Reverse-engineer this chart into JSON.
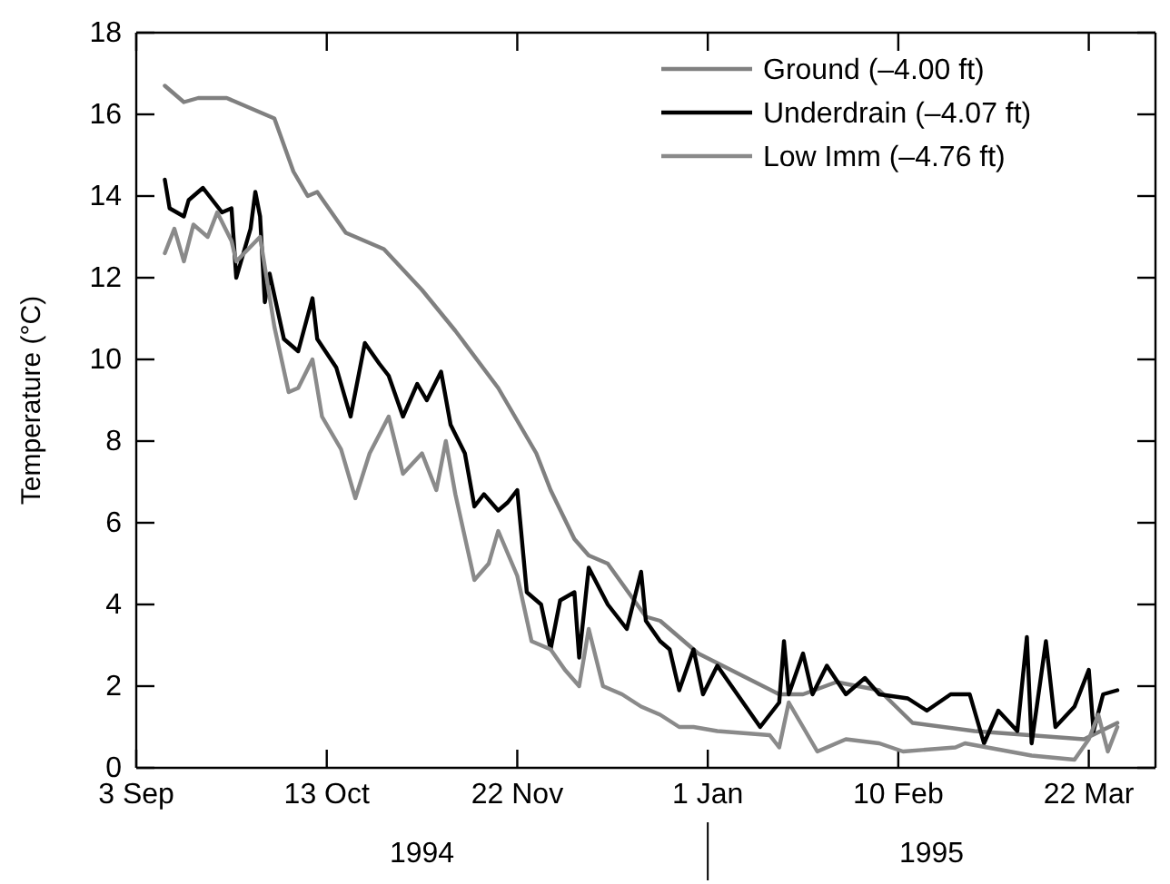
{
  "chart_data": {
    "type": "line",
    "ylabel": "Temperature (°C)",
    "xlim": [
      "1994-09-03",
      "1995-04-05"
    ],
    "xticks": [
      {
        "value": "1994-09-03",
        "label": "3 Sep"
      },
      {
        "value": "1994-10-13",
        "label": "13 Oct"
      },
      {
        "value": "1994-11-22",
        "label": "22 Nov"
      },
      {
        "value": "1995-01-01",
        "label": "1 Jan"
      },
      {
        "value": "1995-02-10",
        "label": "10 Feb"
      },
      {
        "value": "1995-03-22",
        "label": "22 Mar"
      }
    ],
    "ylim": [
      0,
      18
    ],
    "yticks": [
      0,
      2,
      4,
      6,
      8,
      10,
      12,
      14,
      16,
      18
    ],
    "legend": "top right",
    "grid": false,
    "annotations": [
      "1994",
      "1995"
    ],
    "series": [
      {
        "name": "Ground (–4.00 ft)",
        "color": "#808080",
        "x": [
          "1994-09-09",
          "1994-09-13",
          "1994-09-16",
          "1994-09-22",
          "1994-09-28",
          "1994-10-02",
          "1994-10-06",
          "1994-10-09",
          "1994-10-11",
          "1994-10-17",
          "1994-10-25",
          "1994-11-02",
          "1994-11-09",
          "1994-11-18",
          "1994-11-26",
          "1994-11-29",
          "1994-12-04",
          "1994-12-07",
          "1994-12-11",
          "1994-12-19",
          "1994-12-22",
          "1994-12-30",
          "1995-01-16",
          "1995-01-21",
          "1995-01-28",
          "1995-02-06",
          "1995-02-13",
          "1995-02-26",
          "1995-03-21",
          "1995-03-28"
        ],
        "values": [
          16.7,
          16.3,
          16.4,
          16.4,
          16.1,
          15.9,
          14.6,
          14.0,
          14.1,
          13.1,
          12.7,
          11.7,
          10.7,
          9.3,
          7.7,
          6.8,
          5.6,
          5.2,
          5.0,
          3.7,
          3.6,
          2.8,
          1.8,
          1.8,
          2.1,
          1.9,
          1.1,
          0.9,
          0.7,
          1.1
        ]
      },
      {
        "name": "Underdrain (–4.07 ft)",
        "color": "#000000",
        "x": [
          "1994-09-09",
          "1994-09-10",
          "1994-09-13",
          "1994-09-14",
          "1994-09-17",
          "1994-09-19",
          "1994-09-21",
          "1994-09-23",
          "1994-09-24",
          "1994-09-27",
          "1994-09-28",
          "1994-09-29",
          "1994-09-30",
          "1994-10-01",
          "1994-10-04",
          "1994-10-07",
          "1994-10-10",
          "1994-10-11",
          "1994-10-15",
          "1994-10-18",
          "1994-10-21",
          "1994-10-24",
          "1994-10-26",
          "1994-10-29",
          "1994-11-01",
          "1994-11-03",
          "1994-11-06",
          "1994-11-08",
          "1994-11-11",
          "1994-11-13",
          "1994-11-15",
          "1994-11-18",
          "1994-11-20",
          "1994-11-22",
          "1994-11-24",
          "1994-11-27",
          "1994-11-29",
          "1994-12-01",
          "1994-12-04",
          "1994-12-05",
          "1994-12-07",
          "1994-12-11",
          "1994-12-15",
          "1994-12-18",
          "1994-12-19",
          "1994-12-22",
          "1994-12-24",
          "1994-12-26",
          "1994-12-29",
          "1994-12-31",
          "1995-01-03",
          "1995-01-06",
          "1995-01-12",
          "1995-01-16",
          "1995-01-17",
          "1995-01-18",
          "1995-01-21",
          "1995-01-23",
          "1995-01-26",
          "1995-01-30",
          "1995-02-03",
          "1995-02-06",
          "1995-02-12",
          "1995-02-16",
          "1995-02-21",
          "1995-02-25",
          "1995-02-28",
          "1995-03-03",
          "1995-03-07",
          "1995-03-09",
          "1995-03-10",
          "1995-03-13",
          "1995-03-15",
          "1995-03-19",
          "1995-03-22",
          "1995-03-23",
          "1995-03-25",
          "1995-03-28"
        ],
        "values": [
          14.4,
          13.7,
          13.5,
          13.9,
          14.2,
          13.9,
          13.6,
          13.7,
          12.0,
          13.2,
          14.1,
          13.5,
          11.4,
          12.1,
          10.5,
          10.2,
          11.5,
          10.5,
          9.8,
          8.6,
          10.4,
          9.9,
          9.6,
          8.6,
          9.4,
          9.0,
          9.7,
          8.4,
          7.7,
          6.4,
          6.7,
          6.3,
          6.5,
          6.8,
          4.3,
          4.0,
          2.9,
          4.1,
          4.3,
          2.7,
          4.9,
          4.0,
          3.4,
          4.8,
          3.6,
          3.1,
          2.9,
          1.9,
          2.9,
          1.8,
          2.5,
          2.0,
          1.0,
          1.6,
          3.1,
          1.8,
          2.8,
          1.8,
          2.5,
          1.8,
          2.2,
          1.8,
          1.7,
          1.4,
          1.8,
          1.8,
          0.6,
          1.4,
          0.9,
          3.2,
          0.6,
          3.1,
          1.0,
          1.5,
          2.4,
          0.9,
          1.8,
          1.9
        ]
      },
      {
        "name": "Low Imm (–4.76 ft)",
        "color": "#8a8a8a",
        "x": [
          "1994-09-09",
          "1994-09-11",
          "1994-09-13",
          "1994-09-15",
          "1994-09-18",
          "1994-09-20",
          "1994-09-23",
          "1994-09-24",
          "1994-09-29",
          "1994-10-02",
          "1994-10-05",
          "1994-10-07",
          "1994-10-10",
          "1994-10-12",
          "1994-10-16",
          "1994-10-19",
          "1994-10-22",
          "1994-10-26",
          "1994-10-29",
          "1994-11-02",
          "1994-11-05",
          "1994-11-07",
          "1994-11-09",
          "1994-11-13",
          "1994-11-16",
          "1994-11-18",
          "1994-11-22",
          "1994-11-25",
          "1994-11-29",
          "1994-12-02",
          "1994-12-05",
          "1994-12-07",
          "1994-12-10",
          "1994-12-14",
          "1994-12-18",
          "1994-12-22",
          "1994-12-26",
          "1994-12-29",
          "1995-01-03",
          "1995-01-14",
          "1995-01-16",
          "1995-01-18",
          "1995-01-20",
          "1995-01-24",
          "1995-01-30",
          "1995-02-06",
          "1995-02-11",
          "1995-02-22",
          "1995-02-24",
          "1995-03-10",
          "1995-03-19",
          "1995-03-22",
          "1995-03-24",
          "1995-03-26",
          "1995-03-28"
        ],
        "values": [
          12.6,
          13.2,
          12.4,
          13.3,
          13.0,
          13.6,
          12.9,
          12.4,
          13.0,
          10.8,
          9.2,
          9.3,
          10.0,
          8.6,
          7.8,
          6.6,
          7.7,
          8.6,
          7.2,
          7.7,
          6.8,
          8.0,
          6.7,
          4.6,
          5.0,
          5.8,
          4.7,
          3.1,
          2.9,
          2.4,
          2.0,
          3.4,
          2.0,
          1.8,
          1.5,
          1.3,
          1.0,
          1.0,
          0.9,
          0.8,
          0.5,
          1.6,
          1.2,
          0.4,
          0.7,
          0.6,
          0.4,
          0.5,
          0.6,
          0.3,
          0.2,
          0.7,
          1.3,
          0.4,
          1.0
        ]
      }
    ]
  }
}
